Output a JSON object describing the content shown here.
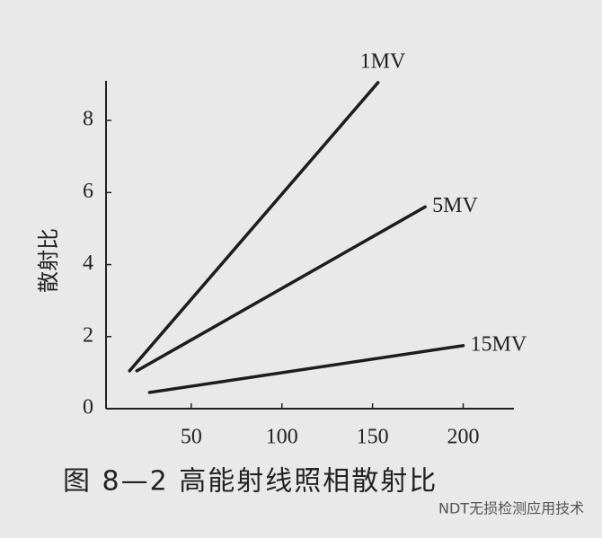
{
  "chart_data": {
    "type": "line",
    "title": "图 8—2   高能射线照相散射比",
    "y_label": "散射比",
    "watermark": "NDT无损检测应用技术",
    "x": [
      [
        16,
        153
      ],
      [
        20,
        179
      ],
      [
        27,
        200
      ]
    ],
    "series": [
      {
        "name": "1MV",
        "color": "#1c1c1c",
        "x": [
          16,
          153
        ],
        "values": [
          1.05,
          9.05
        ]
      },
      {
        "name": "5MV",
        "color": "#1c1c1c",
        "x": [
          20,
          179
        ],
        "values": [
          1.05,
          5.6
        ]
      },
      {
        "name": "15MV",
        "color": "#1c1c1c",
        "x": [
          27,
          200
        ],
        "values": [
          0.45,
          1.75
        ]
      }
    ],
    "xlim": [
      3,
      228
    ],
    "xticks": [
      50,
      100,
      150,
      200
    ],
    "ylim": [
      0,
      9.1
    ],
    "yticks": [
      0,
      2,
      4,
      6,
      8
    ],
    "grid": false
  }
}
